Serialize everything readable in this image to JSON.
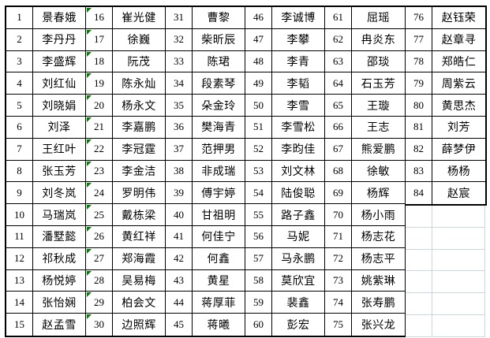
{
  "app": {
    "description_label": "numbered name roster spreadsheet"
  },
  "colors": {
    "border": "#000000",
    "gridline": "#ccd5e4",
    "error_triangle": "#008000",
    "background": "#ffffff",
    "text": "#000000"
  },
  "grid": {
    "rows_per_column_pair": 15,
    "column_pairs": 6,
    "error_marker_num_from": 16,
    "error_marker_num_to": 30,
    "entries": [
      {
        "num": "1",
        "name": "景春娥"
      },
      {
        "num": "2",
        "name": "李丹丹"
      },
      {
        "num": "3",
        "name": "李盛辉"
      },
      {
        "num": "4",
        "name": "刘红仙"
      },
      {
        "num": "5",
        "name": "刘晓娟"
      },
      {
        "num": "6",
        "name": "刘泽"
      },
      {
        "num": "7",
        "name": "王红叶"
      },
      {
        "num": "8",
        "name": "张玉芳"
      },
      {
        "num": "9",
        "name": "刘冬岚"
      },
      {
        "num": "10",
        "name": "马瑞岚"
      },
      {
        "num": "11",
        "name": "潘墅懿"
      },
      {
        "num": "12",
        "name": "祁秋成"
      },
      {
        "num": "13",
        "name": "杨悦婷"
      },
      {
        "num": "14",
        "name": "张怡娴"
      },
      {
        "num": "15",
        "name": "赵孟雪"
      },
      {
        "num": "16",
        "name": "崔光健"
      },
      {
        "num": "17",
        "name": "徐巍"
      },
      {
        "num": "18",
        "name": "阮茂"
      },
      {
        "num": "19",
        "name": "陈永灿"
      },
      {
        "num": "20",
        "name": "杨永文"
      },
      {
        "num": "21",
        "name": "李嘉鹏"
      },
      {
        "num": "22",
        "name": "李冠霆"
      },
      {
        "num": "23",
        "name": "李金洁"
      },
      {
        "num": "24",
        "name": "罗明伟"
      },
      {
        "num": "25",
        "name": "戴栋梁"
      },
      {
        "num": "26",
        "name": "黄红祥"
      },
      {
        "num": "27",
        "name": "郑海霞"
      },
      {
        "num": "28",
        "name": "吴易梅"
      },
      {
        "num": "29",
        "name": "柏会文"
      },
      {
        "num": "30",
        "name": "边照辉"
      },
      {
        "num": "31",
        "name": "曹黎"
      },
      {
        "num": "32",
        "name": "柴昕辰"
      },
      {
        "num": "33",
        "name": "陈珺"
      },
      {
        "num": "34",
        "name": "段素琴"
      },
      {
        "num": "35",
        "name": "朵金玲"
      },
      {
        "num": "36",
        "name": "樊海青"
      },
      {
        "num": "37",
        "name": "范押男"
      },
      {
        "num": "38",
        "name": "非成瑞"
      },
      {
        "num": "39",
        "name": "傅宇婷"
      },
      {
        "num": "40",
        "name": "甘祖明"
      },
      {
        "num": "41",
        "name": "何佳宁"
      },
      {
        "num": "42",
        "name": "何鑫"
      },
      {
        "num": "43",
        "name": "黄星"
      },
      {
        "num": "44",
        "name": "蒋厚菲"
      },
      {
        "num": "45",
        "name": "蒋曦"
      },
      {
        "num": "46",
        "name": "李诚博"
      },
      {
        "num": "47",
        "name": "李攀"
      },
      {
        "num": "48",
        "name": "李青"
      },
      {
        "num": "49",
        "name": "李韬"
      },
      {
        "num": "50",
        "name": "李雪"
      },
      {
        "num": "51",
        "name": "李雪松"
      },
      {
        "num": "52",
        "name": "李昀佳"
      },
      {
        "num": "53",
        "name": "刘文林"
      },
      {
        "num": "54",
        "name": "陆俊聪"
      },
      {
        "num": "55",
        "name": "路子鑫"
      },
      {
        "num": "56",
        "name": "马妮"
      },
      {
        "num": "57",
        "name": "马永鹏"
      },
      {
        "num": "58",
        "name": "莫欣宜"
      },
      {
        "num": "59",
        "name": "裴鑫"
      },
      {
        "num": "60",
        "name": "彭宏"
      },
      {
        "num": "61",
        "name": "屈瑶"
      },
      {
        "num": "62",
        "name": "冉炎东"
      },
      {
        "num": "63",
        "name": "邵琰"
      },
      {
        "num": "64",
        "name": "石玉芳"
      },
      {
        "num": "65",
        "name": "王璇"
      },
      {
        "num": "66",
        "name": "王志"
      },
      {
        "num": "67",
        "name": "熊爱鹏"
      },
      {
        "num": "68",
        "name": "徐敏"
      },
      {
        "num": "69",
        "name": "杨辉"
      },
      {
        "num": "70",
        "name": "杨小雨"
      },
      {
        "num": "71",
        "name": "杨志花"
      },
      {
        "num": "72",
        "name": "杨志平"
      },
      {
        "num": "73",
        "name": "姚紫琳"
      },
      {
        "num": "74",
        "name": "张寿鹏"
      },
      {
        "num": "75",
        "name": "张兴龙"
      },
      {
        "num": "76",
        "name": "赵钰荣"
      },
      {
        "num": "77",
        "name": "赵章寻"
      },
      {
        "num": "78",
        "name": "郑皓仁"
      },
      {
        "num": "79",
        "name": "周紫云"
      },
      {
        "num": "80",
        "name": "黄思杰"
      },
      {
        "num": "81",
        "name": "刘芳"
      },
      {
        "num": "82",
        "name": "薛梦伊"
      },
      {
        "num": "83",
        "name": "杨杨"
      },
      {
        "num": "84",
        "name": "赵宸"
      }
    ]
  }
}
